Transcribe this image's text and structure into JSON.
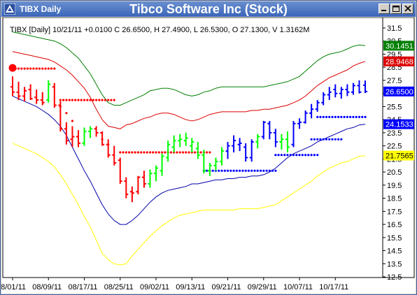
{
  "window": {
    "ticker_label": "TIBX Daily",
    "title": "Tibco Software Inc (Stock)",
    "buttons": [
      "minimize",
      "maximize",
      "close"
    ]
  },
  "info_line": "TIBX [Daily] 10/21/11 +0.0100 C 26.6500, H 27.4900, L 26.5300, O 27.1300, V 1.3162M",
  "colors": {
    "up": "#00ff00",
    "down": "#ff0000",
    "trend": "#0000ff",
    "upper_band": "#008000",
    "mid_band": "#dd0000",
    "lower_band": "#0000aa",
    "bottom_band": "#ffff00"
  },
  "chart_data": {
    "type": "line",
    "ylim": [
      12.5,
      31.5
    ],
    "y_ticks": [
      "12.5",
      "13.5",
      "14.5",
      "15.5",
      "16.5",
      "17.5",
      "18.5",
      "19.5",
      "20.5",
      "21.5",
      "22.5",
      "23.5",
      "24.5",
      "25.5",
      "26.5",
      "27.5",
      "28.5",
      "29.5",
      "30.5",
      "31.5"
    ],
    "x_tick_labels": [
      "08/01/11",
      "08/09/11",
      "08/17/11",
      "08/25/11",
      "09/02/11",
      "09/13/11",
      "09/21/11",
      "09/29/11",
      "10/07/11",
      "10/17/11"
    ],
    "x_tick_index": [
      0,
      6,
      12,
      18,
      24,
      30,
      36,
      42,
      48,
      54
    ],
    "n_bars": 60,
    "bar_colors": [
      "down",
      "down",
      "down",
      "down",
      "down",
      "down",
      "up",
      "down",
      "down",
      "down",
      "down",
      "down",
      "up",
      "up",
      "down",
      "down",
      "down",
      "down",
      "down",
      "down",
      "down",
      "down",
      "down",
      "up",
      "up",
      "up",
      "up",
      "up",
      "up",
      "up",
      "up",
      "up",
      "up",
      "up",
      "up",
      "up",
      "trend",
      "trend",
      "trend",
      "trend",
      "trend",
      "up",
      "trend",
      "trend",
      "trend",
      "up",
      "up",
      "trend",
      "trend",
      "trend",
      "trend",
      "trend",
      "trend",
      "trend",
      "trend",
      "trend",
      "trend",
      "trend",
      "trend",
      "trend"
    ],
    "ohlc": [
      [
        27.0,
        27.8,
        26.3,
        26.6
      ],
      [
        26.6,
        27.4,
        26.0,
        26.3
      ],
      [
        26.3,
        27.0,
        25.9,
        26.7
      ],
      [
        26.8,
        27.2,
        26.0,
        26.1
      ],
      [
        26.2,
        26.8,
        25.7,
        26.0
      ],
      [
        26.0,
        26.6,
        25.6,
        25.8
      ],
      [
        26.0,
        27.5,
        25.8,
        27.2
      ],
      [
        27.0,
        27.3,
        25.4,
        25.6
      ],
      [
        25.6,
        25.9,
        23.6,
        23.8
      ],
      [
        23.8,
        24.3,
        22.6,
        22.9
      ],
      [
        23.0,
        24.0,
        22.4,
        23.2
      ],
      [
        23.2,
        23.7,
        22.4,
        22.7
      ],
      [
        22.7,
        23.9,
        22.5,
        23.6
      ],
      [
        23.6,
        24.0,
        23.1,
        23.8
      ],
      [
        23.8,
        24.0,
        23.2,
        23.5
      ],
      [
        23.5,
        23.6,
        22.5,
        22.6
      ],
      [
        22.6,
        23.0,
        21.6,
        21.8
      ],
      [
        21.8,
        22.5,
        21.0,
        21.2
      ],
      [
        21.4,
        21.6,
        19.6,
        19.8
      ],
      [
        19.8,
        20.1,
        18.5,
        18.8
      ],
      [
        19.0,
        19.4,
        18.2,
        18.9
      ],
      [
        19.0,
        20.2,
        18.8,
        20.1
      ],
      [
        20.1,
        20.6,
        19.3,
        19.6
      ],
      [
        19.6,
        20.7,
        19.3,
        20.4
      ],
      [
        20.4,
        21.0,
        19.8,
        20.8
      ],
      [
        20.6,
        21.9,
        20.2,
        21.7
      ],
      [
        21.6,
        22.9,
        21.3,
        22.6
      ],
      [
        22.4,
        23.3,
        22.0,
        22.9
      ],
      [
        22.9,
        23.4,
        22.4,
        23.0
      ],
      [
        22.9,
        23.5,
        22.5,
        23.1
      ],
      [
        22.5,
        23.1,
        22.0,
        22.8
      ],
      [
        22.3,
        22.8,
        21.5,
        21.8
      ],
      [
        21.8,
        22.2,
        20.4,
        20.6
      ],
      [
        20.6,
        21.2,
        20.2,
        21.0
      ],
      [
        21.0,
        21.6,
        20.6,
        21.3
      ],
      [
        21.3,
        22.4,
        21.0,
        22.1
      ],
      [
        22.1,
        22.8,
        21.5,
        22.5
      ],
      [
        22.5,
        23.3,
        22.0,
        22.9
      ],
      [
        22.6,
        23.1,
        22.1,
        22.7
      ],
      [
        22.4,
        22.7,
        21.3,
        21.6
      ],
      [
        21.6,
        23.0,
        21.3,
        22.8
      ],
      [
        22.8,
        23.4,
        22.3,
        23.2
      ],
      [
        23.2,
        24.4,
        23.0,
        24.3
      ],
      [
        24.2,
        24.4,
        23.0,
        23.5
      ],
      [
        23.5,
        23.8,
        22.4,
        22.8
      ],
      [
        22.8,
        23.4,
        22.2,
        23.0
      ],
      [
        23.0,
        23.6,
        22.0,
        22.4
      ],
      [
        22.6,
        24.4,
        22.4,
        24.2
      ],
      [
        24.2,
        24.6,
        23.8,
        24.3
      ],
      [
        24.3,
        25.2,
        24.2,
        25.0
      ],
      [
        25.0,
        25.7,
        24.6,
        25.3
      ],
      [
        25.3,
        26.0,
        25.1,
        25.8
      ],
      [
        25.8,
        26.6,
        25.6,
        26.4
      ],
      [
        26.4,
        27.0,
        26.0,
        26.6
      ],
      [
        26.8,
        27.2,
        26.2,
        26.5
      ],
      [
        26.5,
        27.0,
        26.1,
        26.8
      ],
      [
        26.8,
        27.2,
        26.3,
        26.6
      ],
      [
        26.6,
        27.3,
        26.4,
        27.1
      ],
      [
        27.1,
        27.5,
        26.5,
        26.6
      ],
      [
        27.13,
        27.49,
        26.53,
        26.65
      ]
    ],
    "series": [
      {
        "color": "upper_band",
        "values": [
          31.2,
          31.1,
          31.0,
          30.9,
          30.8,
          30.7,
          30.6,
          30.5,
          30.3,
          30.0,
          29.6,
          29.2,
          28.6,
          28.0,
          27.2,
          26.4,
          25.8,
          25.6,
          25.6,
          25.8,
          26.0,
          26.2,
          26.4,
          26.7,
          26.8,
          26.9,
          26.9,
          26.8,
          26.6,
          26.4,
          26.3,
          26.4,
          26.6,
          26.7,
          26.9,
          27.0,
          27.0,
          27.0,
          27.0,
          27.0,
          27.0,
          27.0,
          27.0,
          27.1,
          27.2,
          27.3,
          27.4,
          27.6,
          27.8,
          28.2,
          28.6,
          29.0,
          29.3,
          29.5,
          29.6,
          29.7,
          29.9,
          30.1,
          30.2,
          30.15
        ]
      },
      {
        "color": "mid_band",
        "values": [
          29.7,
          29.6,
          29.5,
          29.4,
          29.3,
          29.2,
          29.1,
          28.9,
          28.6,
          28.3,
          27.9,
          27.4,
          26.9,
          26.2,
          25.3,
          24.5,
          24.0,
          23.9,
          23.8,
          24.1,
          24.2,
          24.4,
          24.6,
          24.7,
          24.9,
          25.0,
          25.0,
          24.9,
          24.7,
          24.5,
          24.4,
          24.5,
          24.7,
          24.9,
          25.0,
          25.1,
          25.1,
          25.1,
          25.1,
          25.1,
          25.2,
          25.2,
          25.3,
          25.3,
          25.4,
          25.5,
          25.6,
          25.8,
          26.0,
          26.3,
          26.7,
          27.1,
          27.4,
          27.7,
          27.9,
          28.1,
          28.3,
          28.6,
          28.8,
          28.95
        ]
      },
      {
        "color": "lower_band",
        "values": [
          26.3,
          26.1,
          25.9,
          25.7,
          25.5,
          25.2,
          24.9,
          24.5,
          24.0,
          23.3,
          22.4,
          21.5,
          20.6,
          19.8,
          18.9,
          18.0,
          17.3,
          16.8,
          16.5,
          16.5,
          16.8,
          17.2,
          17.7,
          18.2,
          18.6,
          18.9,
          19.1,
          19.2,
          19.3,
          19.4,
          19.6,
          19.6,
          19.7,
          19.8,
          19.9,
          19.9,
          20.0,
          20.0,
          20.1,
          20.1,
          20.2,
          20.2,
          20.3,
          20.5,
          20.8,
          21.2,
          21.6,
          21.9,
          22.1,
          22.3,
          22.5,
          22.8,
          23.0,
          23.2,
          23.4,
          23.6,
          23.8,
          23.9,
          24.1,
          24.15
        ]
      },
      {
        "color": "bottom_band",
        "values": [
          22.7,
          22.5,
          22.3,
          22.1,
          21.9,
          21.6,
          21.3,
          20.9,
          20.3,
          19.6,
          18.8,
          18.0,
          17.1,
          16.3,
          15.3,
          14.3,
          13.8,
          13.5,
          13.4,
          13.5,
          14.1,
          14.6,
          15.1,
          15.6,
          16.0,
          16.4,
          16.7,
          17.0,
          17.2,
          17.3,
          17.4,
          17.5,
          17.6,
          17.6,
          17.6,
          17.6,
          17.6,
          17.6,
          17.7,
          17.7,
          17.7,
          17.7,
          17.8,
          17.9,
          18.0,
          18.3,
          18.6,
          18.9,
          19.2,
          19.5,
          19.8,
          20.2,
          20.5,
          20.8,
          21.0,
          21.2,
          21.3,
          21.5,
          21.7,
          21.75
        ]
      }
    ],
    "dot_stops": [
      {
        "color": "down",
        "from": 0,
        "to": 7,
        "y": 28.4
      },
      {
        "color": "down",
        "from": 8,
        "to": 17,
        "y": 26.0
      },
      {
        "color": "down",
        "from": 18,
        "to": 33,
        "y": 22.0
      },
      {
        "color": "trend",
        "from": 32,
        "to": 44,
        "y": 20.6
      },
      {
        "color": "trend",
        "from": 44,
        "to": 51,
        "y": 21.8
      },
      {
        "color": "trend",
        "from": 50,
        "to": 55,
        "y": 23.0
      },
      {
        "color": "trend",
        "from": 51,
        "to": 59,
        "y": 24.7
      }
    ],
    "scattered_dots": [
      {
        "color": "down",
        "x": 8,
        "y": 25.5
      },
      {
        "color": "down",
        "x": 9,
        "y": 25.0
      },
      {
        "color": "down",
        "x": 10,
        "y": 24.4
      },
      {
        "color": "down",
        "x": 15,
        "y": 23.0
      },
      {
        "color": "down",
        "x": 16,
        "y": 22.6
      }
    ],
    "start_marker": {
      "color": "down",
      "x": 0,
      "y": 28.45
    },
    "price_badges": [
      {
        "text": "30.1451",
        "bg": "#008000",
        "fg": "#ffffff",
        "value": 30.1451
      },
      {
        "text": "28.9468",
        "bg": "#dd0000",
        "fg": "#ffffff",
        "value": 28.9468
      },
      {
        "text": "26.6500",
        "bg": "#0000ff",
        "fg": "#ffffff",
        "value": 26.65
      },
      {
        "text": "24.1533",
        "bg": "#0000ff",
        "fg": "#ffffff",
        "value": 24.1533
      },
      {
        "text": "21.7565",
        "bg": "#ffff00",
        "fg": "#000000",
        "value": 21.7565
      }
    ]
  }
}
